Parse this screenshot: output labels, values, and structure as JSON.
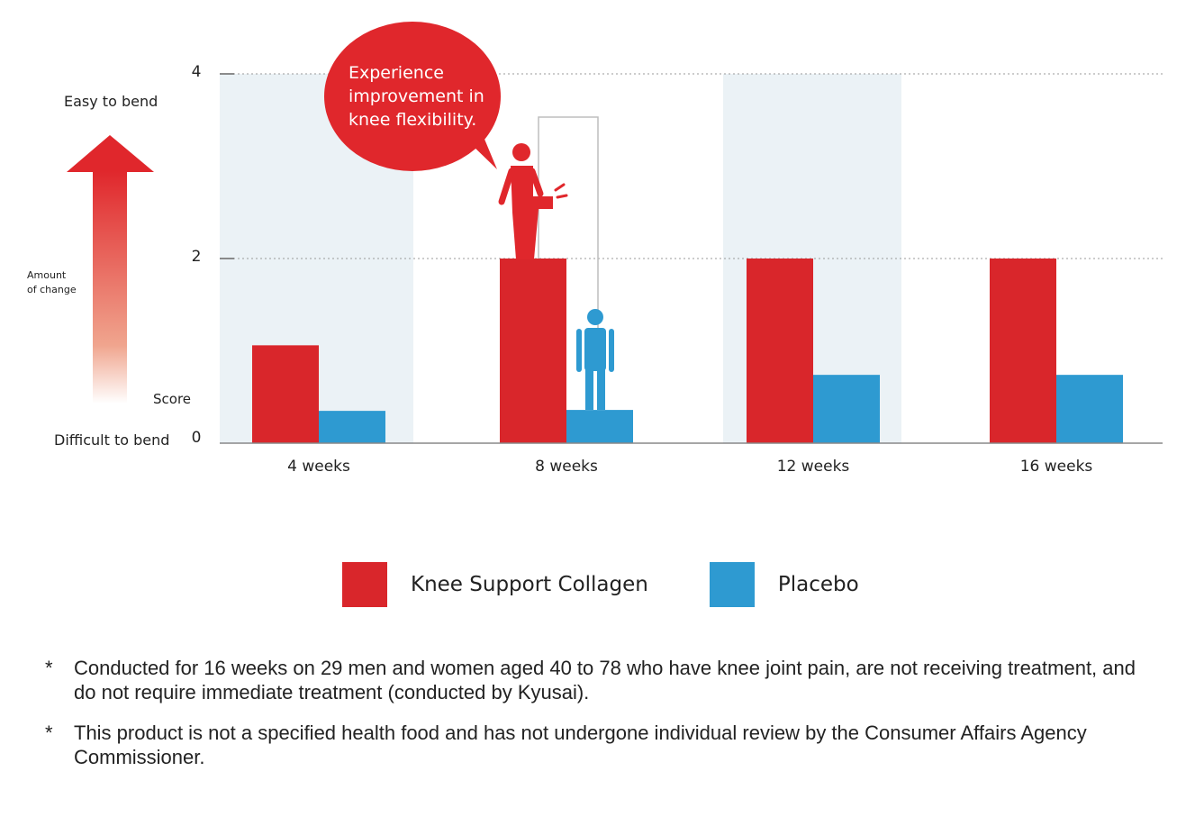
{
  "scale": {
    "top_label": "Easy to bend",
    "bottom_label": "Difficult to bend",
    "side_label_line1": "Amount",
    "side_label_line2": "of change",
    "score_label": "Score"
  },
  "callout": {
    "line1": "Experience",
    "line2": "improvement in",
    "line3": "knee flexibility."
  },
  "colors": {
    "collagen": "#d9262b",
    "placebo": "#2e9ad1",
    "band": "#ebf2f6",
    "figure_red": "#e0272c",
    "figure_blue": "#2e9ad1"
  },
  "chart_data": {
    "type": "bar",
    "categories": [
      "4 weeks",
      "8 weeks",
      "12 weeks",
      "16 weeks"
    ],
    "series": [
      {
        "name": "Knee Support Collagen",
        "values": [
          1.06,
          2.0,
          2.0,
          2.0
        ]
      },
      {
        "name": "Placebo",
        "values": [
          0.35,
          0.36,
          0.74,
          0.74
        ]
      }
    ],
    "yticks": [
      0,
      2,
      4
    ],
    "ylim": [
      0,
      4
    ],
    "grid": true,
    "legend_position": "bottom"
  },
  "notes": [
    {
      "mark": "*",
      "text": "Conducted for 16 weeks on 29 men and women aged 40 to 78 who have knee joint pain, are not receiving treatment, and do not require immediate treatment (conducted by Kyusai)."
    },
    {
      "mark": "*",
      "text": "This product is not a specified health food and has not undergone individual review by the Consumer Affairs Agency Commissioner."
    }
  ]
}
